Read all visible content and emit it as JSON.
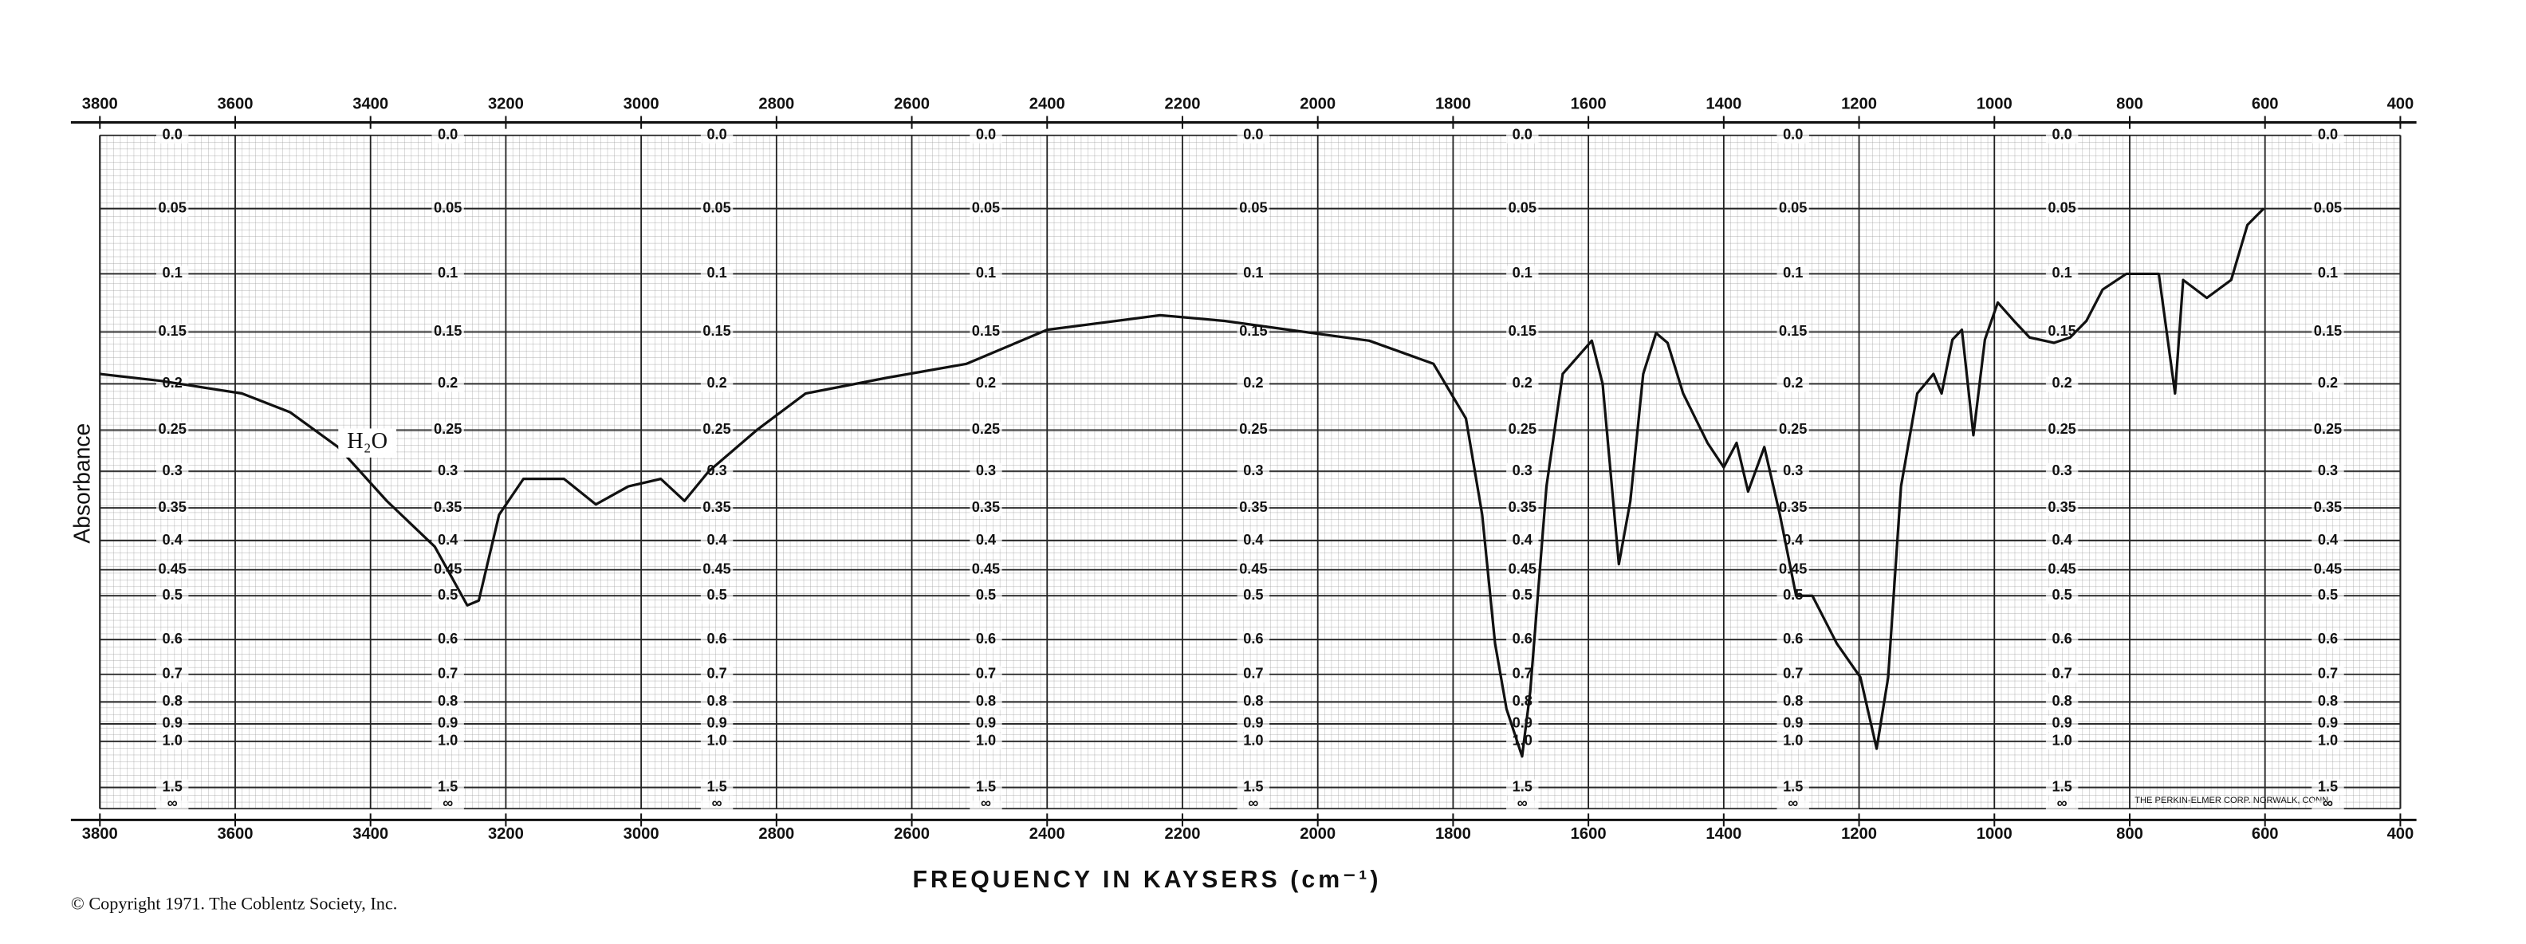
{
  "chart_data": {
    "type": "line",
    "xlabel": "FREQUENCY IN KAYSERS (cm⁻¹)",
    "ylabel": "Absorbance",
    "annotations": [
      "H₂O"
    ],
    "footer": "© Copyright 1971. The Coblentz Society, Inc.",
    "imprint": "THE PERKIN-ELMER CORP. NORWALK, CONN.",
    "yscale": "absorbance",
    "grid": true,
    "xlim": [
      3800,
      400
    ],
    "xticks": [
      3800,
      3600,
      3400,
      3200,
      3000,
      2800,
      2600,
      2400,
      2200,
      2000,
      1800,
      1600,
      1400,
      1200,
      1000,
      800,
      600,
      400
    ],
    "ylim": [
      0,
      null
    ],
    "yticks": [
      {
        "value": 0,
        "label": "0.0"
      },
      0.05,
      0.1,
      0.15,
      0.2,
      0.25,
      0.3,
      0.35,
      0.4,
      0.45,
      0.5,
      0.6,
      0.7,
      0.8,
      0.9,
      {
        "value": 1,
        "label": "1.0"
      },
      1.5,
      {
        "value": null,
        "label": "∞"
      }
    ],
    "series": [
      {
        "color": "#111111",
        "x": [
          3800,
          3710,
          3590,
          3519,
          3448,
          3376,
          3305,
          3257,
          3240,
          3210,
          3174,
          3114,
          3067,
          3019,
          2971,
          2936,
          2900,
          2829,
          2757,
          2638,
          2519,
          2400,
          2233,
          2138,
          2043,
          1924,
          1829,
          1781,
          1757,
          1738,
          1721,
          1698,
          1686,
          1662,
          1638,
          1595,
          1579,
          1555,
          1538,
          1519,
          1500,
          1483,
          1460,
          1424,
          1400,
          1381,
          1364,
          1340,
          1317,
          1293,
          1269,
          1233,
          1198,
          1174,
          1157,
          1138,
          1114,
          1090,
          1078,
          1062,
          1048,
          1031,
          1014,
          995,
          971,
          948,
          912,
          888,
          864,
          840,
          805,
          757,
          733,
          721,
          686,
          650,
          626,
          602
        ],
        "values": [
          0.19,
          0.197,
          0.21,
          0.23,
          0.27,
          0.34,
          0.41,
          0.52,
          0.51,
          0.36,
          0.31,
          0.31,
          0.345,
          0.32,
          0.31,
          0.34,
          0.3,
          0.25,
          0.21,
          0.194,
          0.18,
          0.148,
          0.135,
          0.14,
          0.148,
          0.158,
          0.18,
          0.237,
          0.36,
          0.61,
          0.83,
          1.11,
          0.76,
          0.32,
          0.19,
          0.158,
          0.2,
          0.44,
          0.34,
          0.19,
          0.151,
          0.16,
          0.21,
          0.265,
          0.295,
          0.265,
          0.327,
          0.27,
          0.36,
          0.5,
          0.5,
          0.61,
          0.71,
          1.05,
          0.71,
          0.32,
          0.21,
          0.19,
          0.21,
          0.157,
          0.148,
          0.256,
          0.157,
          0.124,
          0.14,
          0.155,
          0.16,
          0.155,
          0.14,
          0.113,
          0.1,
          0.1,
          0.21,
          0.105,
          0.12,
          0.105,
          0.062,
          0.05
        ]
      }
    ]
  }
}
